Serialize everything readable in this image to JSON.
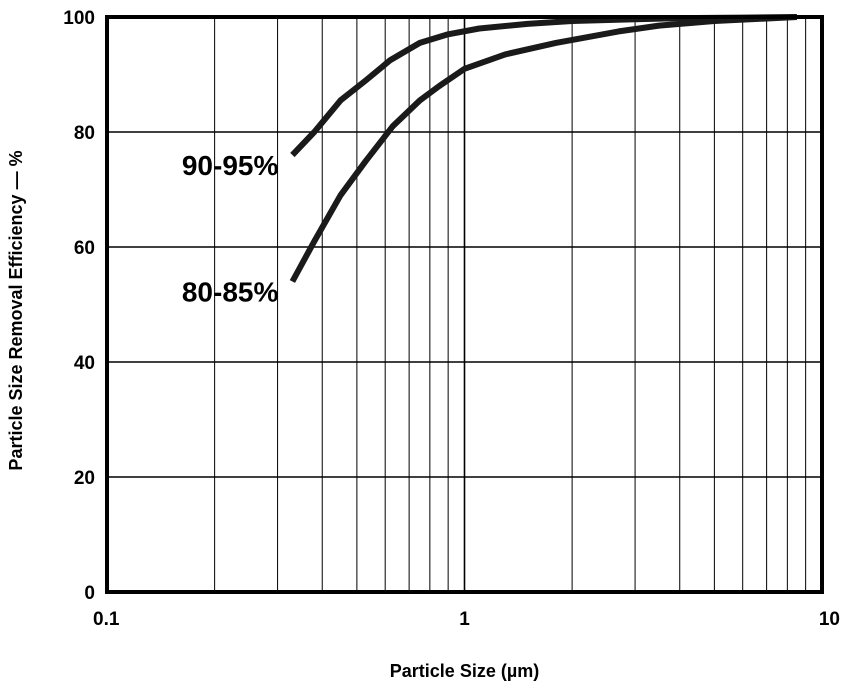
{
  "chart_data": {
    "type": "line",
    "title": "",
    "xlabel": "Particle Size (µm)",
    "ylabel": "Particle Size Removal Efficiency — %",
    "xscale": "log",
    "xlim": [
      0.1,
      10
    ],
    "ylim": [
      0,
      100
    ],
    "grid": true,
    "x_tick_labels": [
      {
        "value": 0.1,
        "label": "0.1"
      },
      {
        "value": 1,
        "label": "1"
      },
      {
        "value": 10,
        "label": "10"
      }
    ],
    "y_tick_labels": [
      {
        "value": 0,
        "label": "0"
      },
      {
        "value": 20,
        "label": "20"
      },
      {
        "value": 40,
        "label": "40"
      },
      {
        "value": 60,
        "label": "60"
      },
      {
        "value": 80,
        "label": "80"
      },
      {
        "value": 100,
        "label": "100"
      }
    ],
    "series": [
      {
        "name": "90-95%",
        "x": [
          0.33,
          0.38,
          0.45,
          0.53,
          0.62,
          0.75,
          0.9,
          1.1,
          1.5,
          2.0,
          3.0,
          4.0,
          6.0,
          8.5
        ],
        "y": [
          76,
          80,
          85.5,
          89,
          92.5,
          95.5,
          97,
          98,
          98.8,
          99.3,
          99.6,
          99.8,
          99.9,
          100
        ]
      },
      {
        "name": "80-85%",
        "x": [
          0.33,
          0.38,
          0.45,
          0.53,
          0.63,
          0.75,
          0.85,
          1.0,
          1.3,
          1.8,
          2.7,
          3.5,
          5.0,
          8.5
        ],
        "y": [
          54,
          61,
          69,
          75,
          81,
          85.5,
          88,
          91,
          93.5,
          95.5,
          97.5,
          98.5,
          99.3,
          100
        ]
      }
    ]
  }
}
